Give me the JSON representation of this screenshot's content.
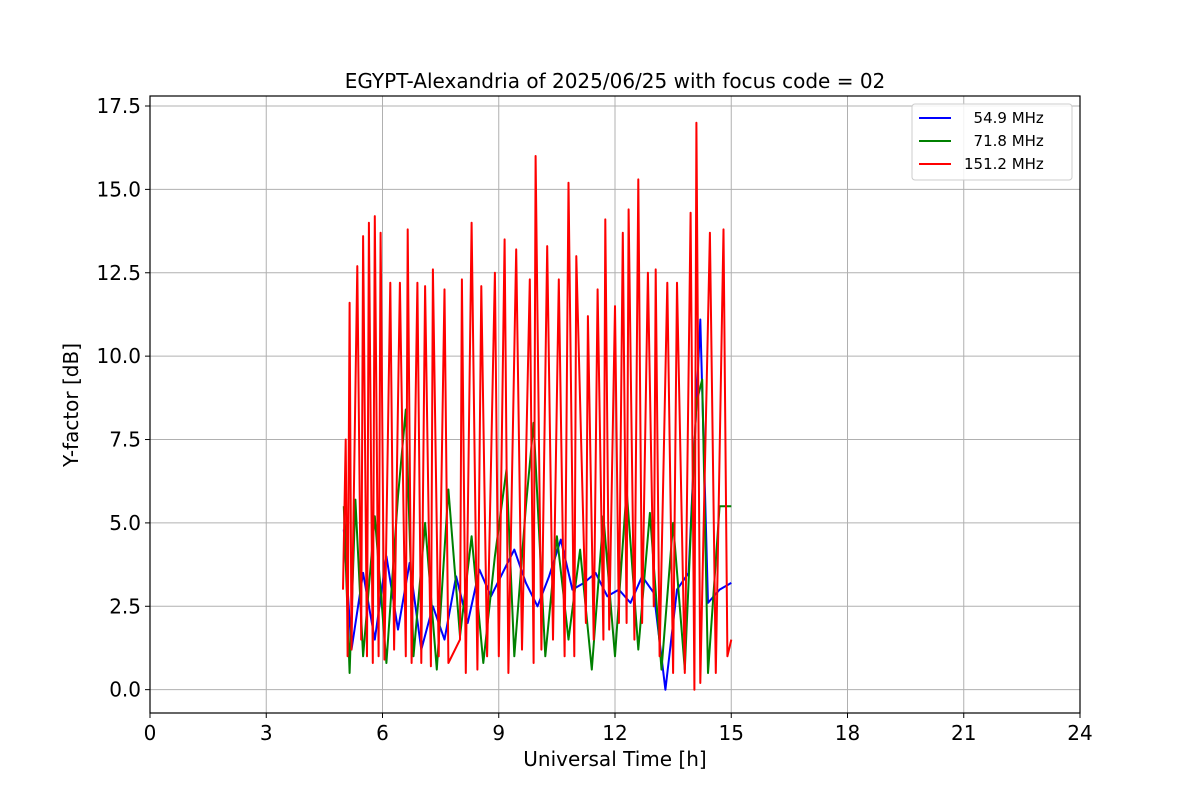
{
  "chart_data": {
    "type": "line",
    "title": "EGYPT-Alexandria of 2025/06/25 with focus code = 02",
    "xlabel": "Universal Time [h]",
    "ylabel": "Y-factor [dB]",
    "xlim": [
      0,
      24
    ],
    "ylim": [
      -0.7,
      17.8
    ],
    "xticks": [
      0,
      3,
      6,
      9,
      12,
      15,
      18,
      21,
      24
    ],
    "xtick_labels": [
      "0",
      "3",
      "6",
      "9",
      "12",
      "15",
      "18",
      "21",
      "24"
    ],
    "yticks": [
      0,
      2.5,
      5,
      7.5,
      10,
      12.5,
      15,
      17.5
    ],
    "ytick_labels": [
      "0.0",
      "2.5",
      "5.0",
      "7.5",
      "10.0",
      "12.5",
      "15.0",
      "17.5"
    ],
    "grid": true,
    "legend_position": "top-right",
    "series": [
      {
        "name": "  54.9 MHz",
        "color": "#0000ff",
        "points": [
          [
            5.0,
            4.8
          ],
          [
            5.2,
            1.2
          ],
          [
            5.5,
            3.5
          ],
          [
            5.8,
            1.5
          ],
          [
            6.1,
            4.0
          ],
          [
            6.4,
            1.8
          ],
          [
            6.7,
            3.8
          ],
          [
            7.0,
            1.2
          ],
          [
            7.3,
            2.5
          ],
          [
            7.6,
            1.5
          ],
          [
            7.9,
            3.4
          ],
          [
            8.2,
            2.0
          ],
          [
            8.5,
            3.6
          ],
          [
            8.8,
            2.8
          ],
          [
            9.1,
            3.5
          ],
          [
            9.4,
            4.2
          ],
          [
            9.7,
            3.2
          ],
          [
            10.0,
            2.5
          ],
          [
            10.3,
            3.4
          ],
          [
            10.6,
            4.5
          ],
          [
            10.9,
            3.0
          ],
          [
            11.2,
            3.2
          ],
          [
            11.5,
            3.5
          ],
          [
            11.8,
            2.8
          ],
          [
            12.1,
            3.0
          ],
          [
            12.4,
            2.6
          ],
          [
            12.7,
            3.4
          ],
          [
            13.0,
            2.9
          ],
          [
            13.3,
            0.0
          ],
          [
            13.6,
            3.0
          ],
          [
            13.9,
            3.5
          ],
          [
            14.2,
            11.1
          ],
          [
            14.4,
            2.6
          ],
          [
            14.7,
            3.0
          ],
          [
            15.0,
            3.2
          ]
        ]
      },
      {
        "name": "  71.8 MHz",
        "color": "#008000",
        "points": [
          [
            5.0,
            5.5
          ],
          [
            5.15,
            0.5
          ],
          [
            5.3,
            5.7
          ],
          [
            5.5,
            1.0
          ],
          [
            5.8,
            5.2
          ],
          [
            6.1,
            0.8
          ],
          [
            6.4,
            5.8
          ],
          [
            6.6,
            8.4
          ],
          [
            6.8,
            1.0
          ],
          [
            7.1,
            5.0
          ],
          [
            7.4,
            0.6
          ],
          [
            7.7,
            6.0
          ],
          [
            8.0,
            1.6
          ],
          [
            8.3,
            4.6
          ],
          [
            8.6,
            0.8
          ],
          [
            8.9,
            4.0
          ],
          [
            9.2,
            6.6
          ],
          [
            9.4,
            1.0
          ],
          [
            9.7,
            5.5
          ],
          [
            9.9,
            8.0
          ],
          [
            10.2,
            1.0
          ],
          [
            10.5,
            4.6
          ],
          [
            10.8,
            1.5
          ],
          [
            11.1,
            4.2
          ],
          [
            11.4,
            0.6
          ],
          [
            11.7,
            5.2
          ],
          [
            12.0,
            1.0
          ],
          [
            12.3,
            6.0
          ],
          [
            12.6,
            1.2
          ],
          [
            12.9,
            5.3
          ],
          [
            13.2,
            0.6
          ],
          [
            13.5,
            5.0
          ],
          [
            13.8,
            0.6
          ],
          [
            14.1,
            8.6
          ],
          [
            14.25,
            9.3
          ],
          [
            14.4,
            0.5
          ],
          [
            14.7,
            5.5
          ],
          [
            15.0,
            5.5
          ]
        ]
      },
      {
        "name": "151.2 MHz",
        "color": "#ff0000",
        "points": [
          [
            4.98,
            3.0
          ],
          [
            5.05,
            7.5
          ],
          [
            5.1,
            1.0
          ],
          [
            5.15,
            11.6
          ],
          [
            5.2,
            1.2
          ],
          [
            5.35,
            12.7
          ],
          [
            5.45,
            1.5
          ],
          [
            5.5,
            13.6
          ],
          [
            5.6,
            1.0
          ],
          [
            5.65,
            14.0
          ],
          [
            5.75,
            0.8
          ],
          [
            5.8,
            14.2
          ],
          [
            5.9,
            1.0
          ],
          [
            5.95,
            13.7
          ],
          [
            6.05,
            0.9
          ],
          [
            6.2,
            12.2
          ],
          [
            6.3,
            1.2
          ],
          [
            6.45,
            12.2
          ],
          [
            6.6,
            1.0
          ],
          [
            6.65,
            13.8
          ],
          [
            6.75,
            0.8
          ],
          [
            6.9,
            12.2
          ],
          [
            7.0,
            0.8
          ],
          [
            7.1,
            12.1
          ],
          [
            7.25,
            0.7
          ],
          [
            7.3,
            12.6
          ],
          [
            7.45,
            1.0
          ],
          [
            7.6,
            12.0
          ],
          [
            7.7,
            0.8
          ],
          [
            8.0,
            1.5
          ],
          [
            8.05,
            12.3
          ],
          [
            8.15,
            0.5
          ],
          [
            8.3,
            14.0
          ],
          [
            8.45,
            0.6
          ],
          [
            8.55,
            12.1
          ],
          [
            8.7,
            1.0
          ],
          [
            8.9,
            12.5
          ],
          [
            9.0,
            1.0
          ],
          [
            9.15,
            13.5
          ],
          [
            9.25,
            0.5
          ],
          [
            9.45,
            13.2
          ],
          [
            9.6,
            1.2
          ],
          [
            9.8,
            12.3
          ],
          [
            9.9,
            0.8
          ],
          [
            9.95,
            16.0
          ],
          [
            10.1,
            1.2
          ],
          [
            10.25,
            13.3
          ],
          [
            10.4,
            1.5
          ],
          [
            10.55,
            12.3
          ],
          [
            10.7,
            1.0
          ],
          [
            10.8,
            15.2
          ],
          [
            10.95,
            1.0
          ],
          [
            11.0,
            13.0
          ],
          [
            11.25,
            2.0
          ],
          [
            11.3,
            11.2
          ],
          [
            11.45,
            1.5
          ],
          [
            11.55,
            12.0
          ],
          [
            11.7,
            1.5
          ],
          [
            11.75,
            14.1
          ],
          [
            11.85,
            1.8
          ],
          [
            12.0,
            11.5
          ],
          [
            12.1,
            2.0
          ],
          [
            12.2,
            13.7
          ],
          [
            12.3,
            2.0
          ],
          [
            12.35,
            14.4
          ],
          [
            12.5,
            1.5
          ],
          [
            12.6,
            15.3
          ],
          [
            12.7,
            2.0
          ],
          [
            12.85,
            12.5
          ],
          [
            13.0,
            2.5
          ],
          [
            13.05,
            12.6
          ],
          [
            13.15,
            1.0
          ],
          [
            13.35,
            12.2
          ],
          [
            13.5,
            0.5
          ],
          [
            13.6,
            12.2
          ],
          [
            13.8,
            0.5
          ],
          [
            13.95,
            14.3
          ],
          [
            14.05,
            0.0
          ],
          [
            14.1,
            17.0
          ],
          [
            14.2,
            0.2
          ],
          [
            14.45,
            13.7
          ],
          [
            14.6,
            0.5
          ],
          [
            14.8,
            13.8
          ],
          [
            14.9,
            1.0
          ],
          [
            15.0,
            1.5
          ]
        ]
      }
    ]
  }
}
